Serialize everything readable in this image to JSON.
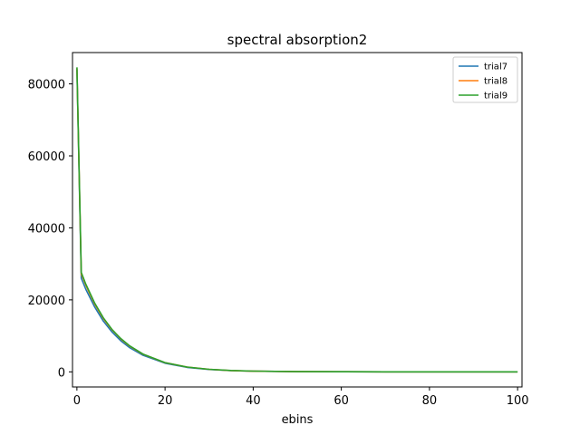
{
  "chart_data": {
    "type": "line",
    "title": "spectral absorption2",
    "xlabel": "ebins",
    "ylabel": "",
    "xlim": [
      -1,
      101
    ],
    "ylim": [
      -4200,
      88700
    ],
    "xticks": [
      0,
      20,
      40,
      60,
      80,
      100
    ],
    "yticks": [
      0,
      20000,
      40000,
      60000,
      80000
    ],
    "legend_position": "top-right",
    "grid": false,
    "series": [
      {
        "name": "trial7",
        "color": "#1f77b4",
        "x": [
          0,
          1,
          2,
          4,
          6,
          8,
          10,
          12,
          15,
          20,
          25,
          30,
          35,
          40,
          50,
          60,
          70,
          80,
          90,
          100
        ],
        "y": [
          84000,
          26000,
          23000,
          18100,
          14100,
          11000,
          8600,
          6700,
          4600,
          2400,
          1250,
          650,
          340,
          180,
          60,
          20,
          8,
          3,
          1,
          0
        ]
      },
      {
        "name": "trial8",
        "color": "#ff7f0e",
        "x": [
          0,
          1,
          2,
          4,
          6,
          8,
          10,
          12,
          15,
          20,
          25,
          30,
          35,
          40,
          50,
          60,
          70,
          80,
          90,
          100
        ],
        "y": [
          84300,
          27200,
          24100,
          18900,
          14800,
          11600,
          9100,
          7100,
          4900,
          2550,
          1330,
          700,
          360,
          190,
          65,
          22,
          9,
          3,
          1,
          0
        ]
      },
      {
        "name": "trial9",
        "color": "#2ca02c",
        "x": [
          0,
          1,
          2,
          4,
          6,
          8,
          10,
          12,
          15,
          20,
          25,
          30,
          35,
          40,
          50,
          60,
          70,
          80,
          90,
          100
        ],
        "y": [
          84600,
          27600,
          24400,
          19200,
          15000,
          11700,
          9200,
          7200,
          4950,
          2580,
          1350,
          710,
          370,
          195,
          66,
          22,
          9,
          3,
          1,
          0
        ]
      }
    ]
  }
}
